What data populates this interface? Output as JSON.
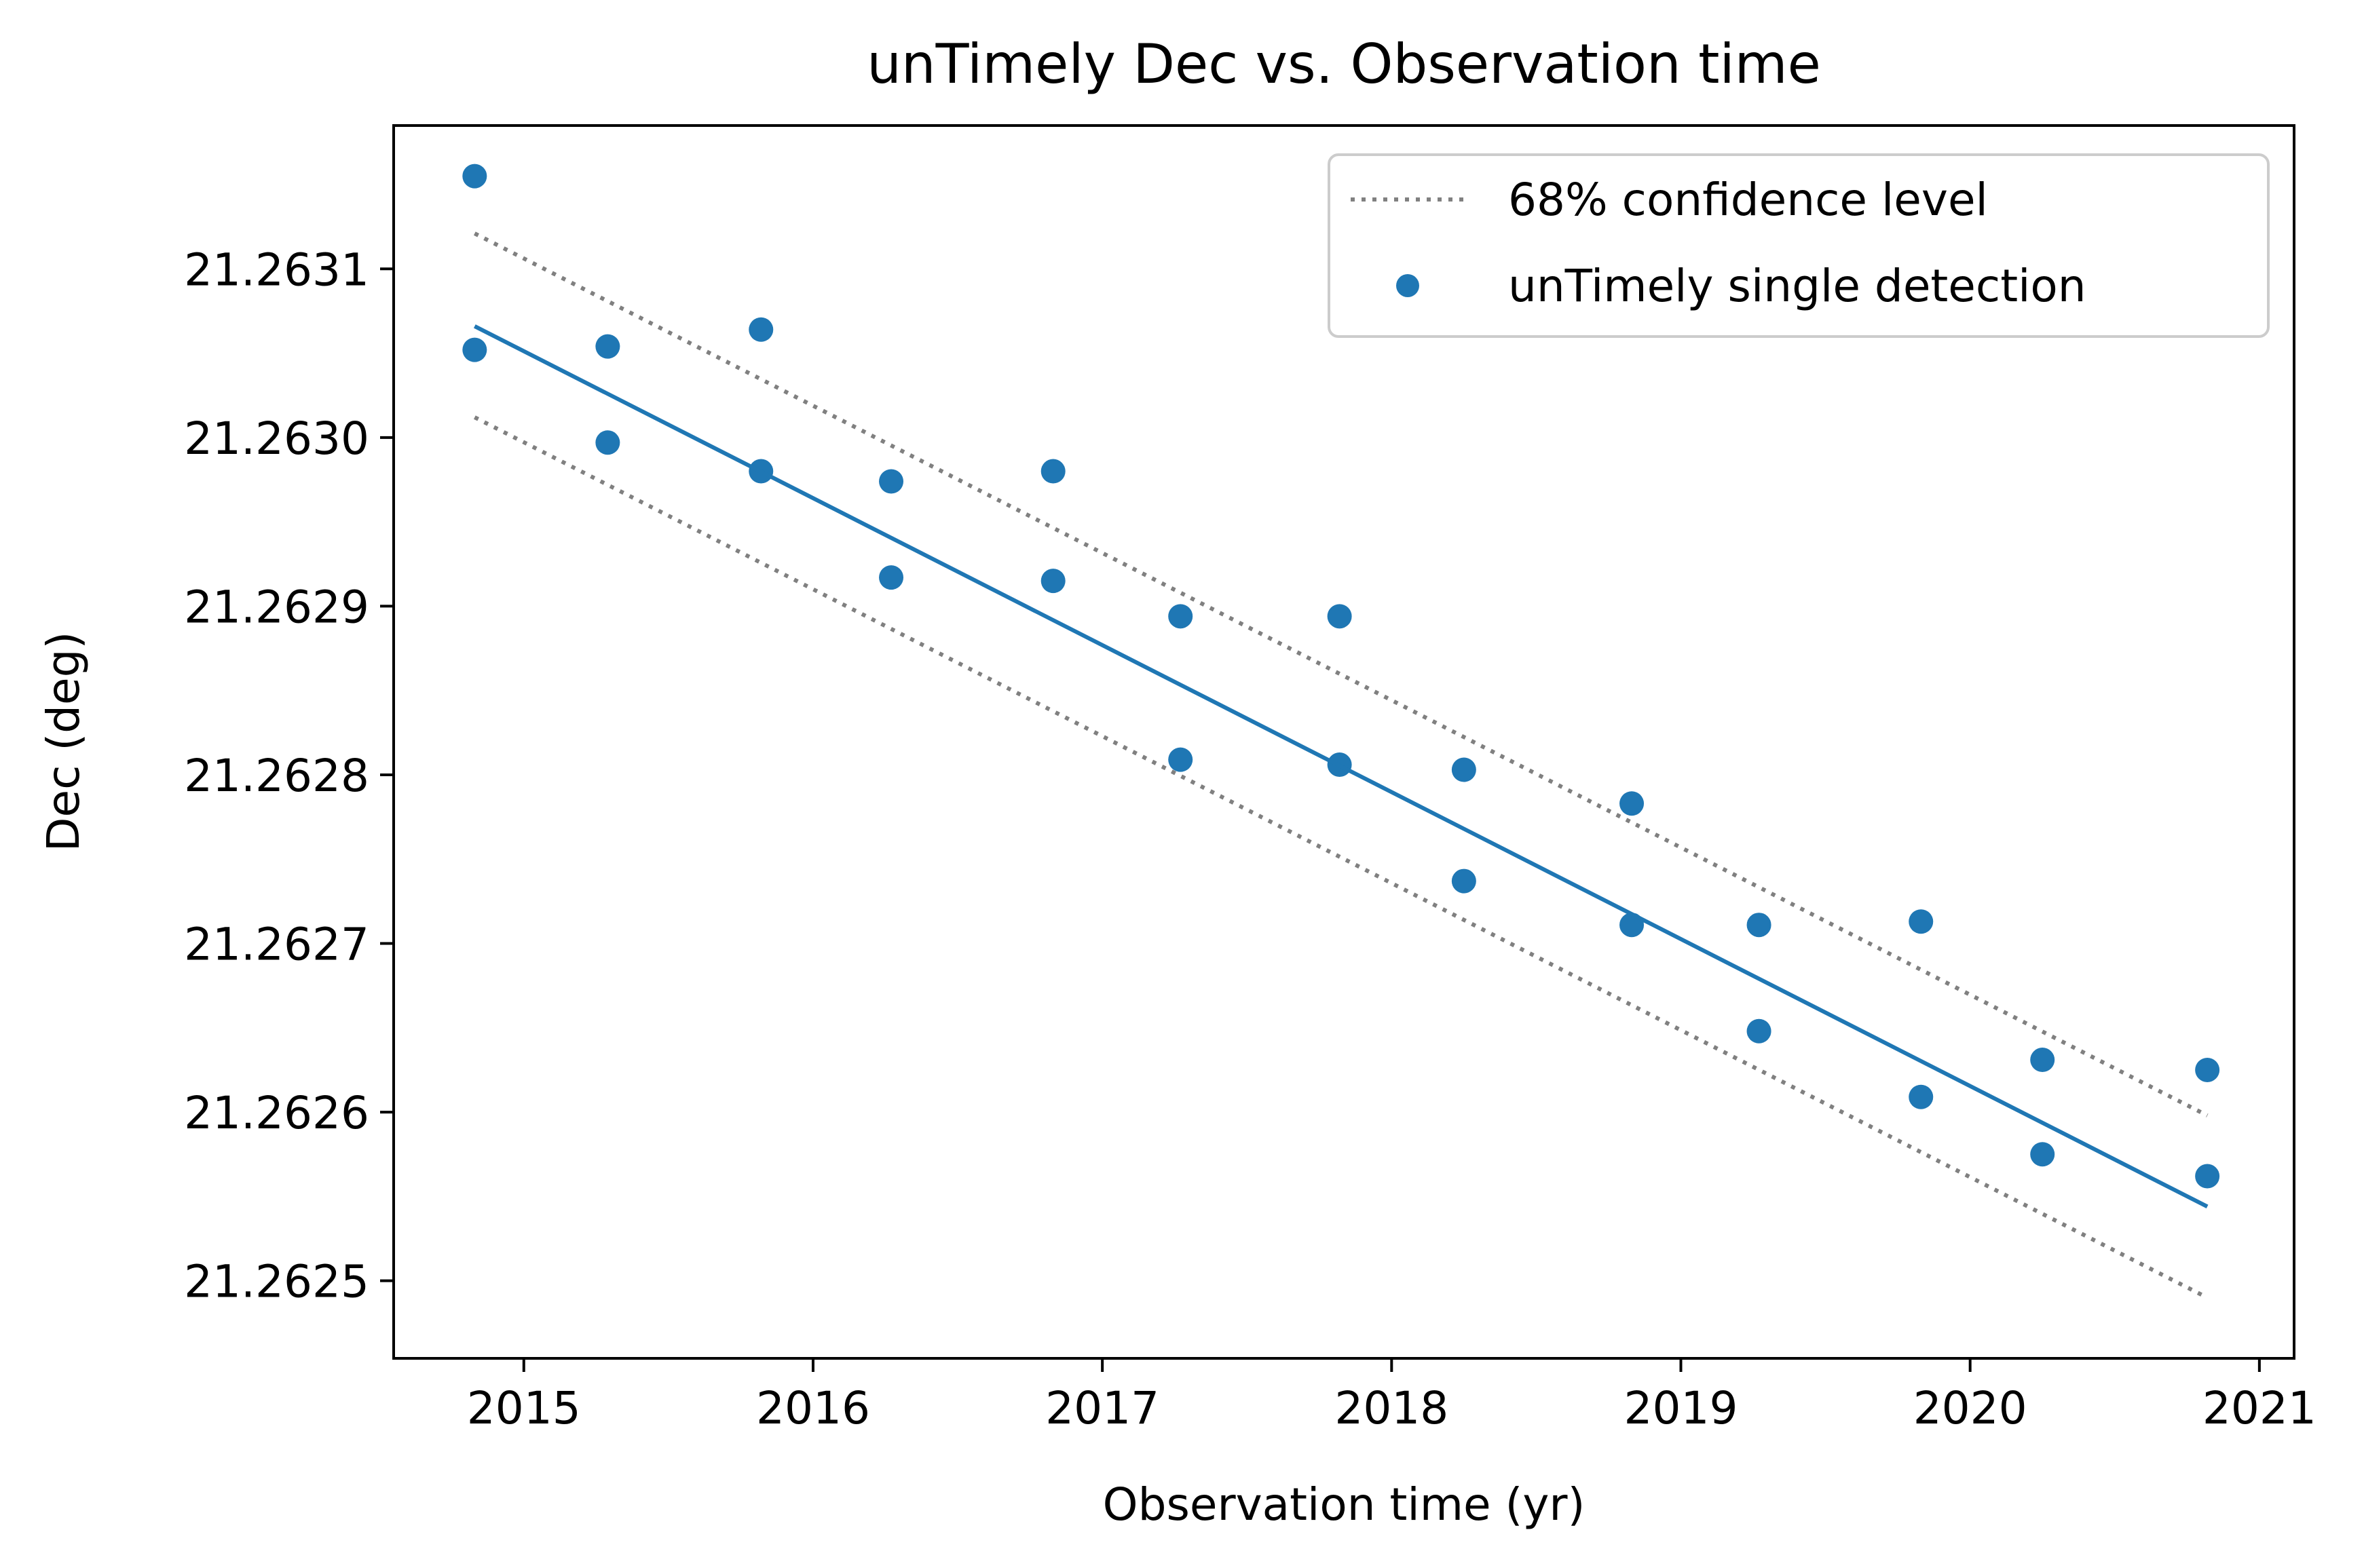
{
  "chart_data": {
    "type": "scatter",
    "title": "unTimely Dec vs. Observation time",
    "xlabel": "Observation time (yr)",
    "ylabel": "Dec (deg)",
    "xlim": [
      2014.55,
      2021.12
    ],
    "ylim": [
      21.262454,
      21.263185
    ],
    "x_ticks": [
      2015,
      2016,
      2017,
      2018,
      2019,
      2020,
      2021
    ],
    "y_ticks": [
      21.2625,
      21.2626,
      21.2627,
      21.2628,
      21.2629,
      21.263,
      21.2631
    ],
    "y_tick_labels": [
      "21.2625",
      "21.2626",
      "21.2627",
      "21.2628",
      "21.2629",
      "21.2630",
      "21.2631"
    ],
    "grid": false,
    "legend_position": "top-right",
    "series": [
      {
        "name": "unTimely single detection",
        "kind": "scatter",
        "color": "#1f77b4",
        "points": [
          [
            2014.83,
            21.263155
          ],
          [
            2014.83,
            21.263052
          ],
          [
            2015.29,
            21.263054
          ],
          [
            2015.29,
            21.262997
          ],
          [
            2015.82,
            21.263064
          ],
          [
            2015.82,
            21.26298
          ],
          [
            2016.27,
            21.262974
          ],
          [
            2016.27,
            21.262917
          ],
          [
            2016.83,
            21.26298
          ],
          [
            2016.83,
            21.262915
          ],
          [
            2017.27,
            21.262894
          ],
          [
            2017.27,
            21.262809
          ],
          [
            2017.82,
            21.262894
          ],
          [
            2017.82,
            21.262806
          ],
          [
            2018.25,
            21.262803
          ],
          [
            2018.25,
            21.262737
          ],
          [
            2018.83,
            21.262783
          ],
          [
            2018.83,
            21.262711
          ],
          [
            2019.27,
            21.262711
          ],
          [
            2019.27,
            21.262648
          ],
          [
            2019.83,
            21.262713
          ],
          [
            2019.83,
            21.262609
          ],
          [
            2020.25,
            21.262631
          ],
          [
            2020.25,
            21.262575
          ],
          [
            2020.82,
            21.262625
          ],
          [
            2020.82,
            21.262562
          ]
        ]
      },
      {
        "name": "",
        "kind": "fit-line",
        "color": "#1f77b4",
        "x": [
          2014.83,
          2020.82
        ],
        "y": [
          21.263066,
          21.262544
        ]
      },
      {
        "name": "68% confidence level",
        "kind": "upper-bound",
        "style": "dotted",
        "color": "#808080",
        "x": [
          2014.83,
          2020.82
        ],
        "y": [
          21.263121,
          21.262598
        ]
      },
      {
        "name": "",
        "kind": "lower-bound",
        "style": "dotted",
        "color": "#808080",
        "x": [
          2014.83,
          2020.82
        ],
        "y": [
          21.263012,
          21.26249
        ]
      }
    ],
    "legend": [
      {
        "label": "68% confidence level",
        "marker": "dotted-line",
        "color": "#808080"
      },
      {
        "label": "unTimely single detection",
        "marker": "dot",
        "color": "#1f77b4"
      }
    ]
  }
}
